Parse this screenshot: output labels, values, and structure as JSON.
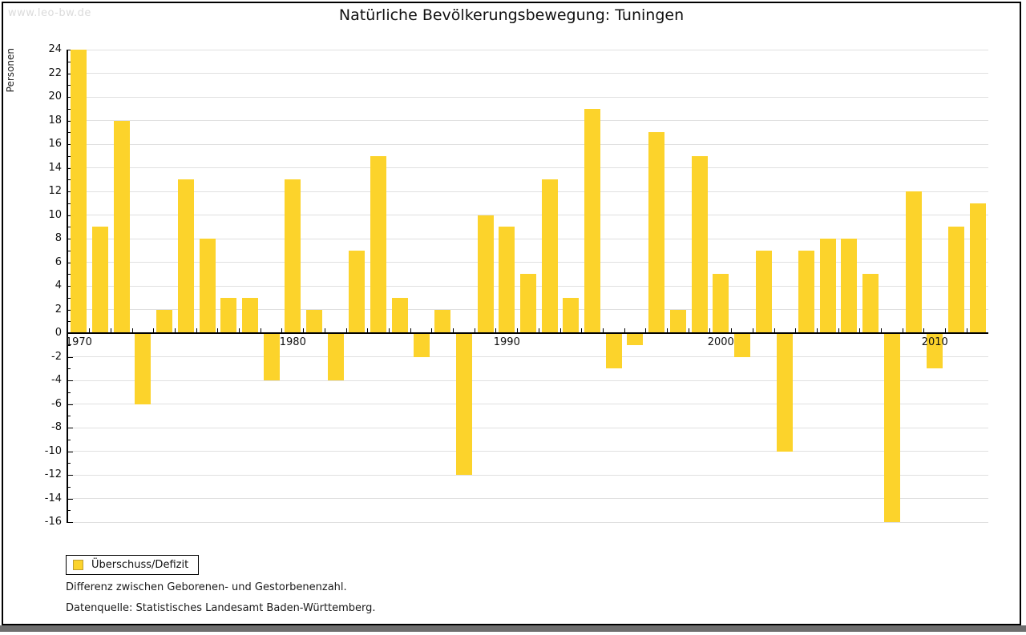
{
  "watermark": "www.leo-bw.de",
  "title": "Natürliche Bevölkerungsbewegung: Tuningen",
  "chart_data": {
    "type": "bar",
    "title": "Natürliche Bevölkerungsbewegung: Tuningen",
    "ylabel": "Personen",
    "ylim": [
      -16,
      24
    ],
    "ytick_step": 2,
    "grid": true,
    "legend_position": "bottom-left",
    "x_decade_labels": [
      1970,
      1980,
      1990,
      2000,
      2010
    ],
    "categories": [
      1970,
      1971,
      1972,
      1973,
      1974,
      1975,
      1976,
      1977,
      1978,
      1979,
      1980,
      1981,
      1982,
      1983,
      1984,
      1985,
      1986,
      1987,
      1988,
      1989,
      1990,
      1991,
      1992,
      1993,
      1994,
      1995,
      1996,
      1997,
      1998,
      1999,
      2000,
      2001,
      2002,
      2003,
      2004,
      2005,
      2006,
      2007,
      2008,
      2009,
      2010,
      2011,
      2012
    ],
    "series": [
      {
        "name": "Überschuss/Defizit",
        "values": [
          24,
          9,
          18,
          -6,
          2,
          13,
          8,
          3,
          3,
          -4,
          13,
          2,
          -4,
          7,
          15,
          3,
          -2,
          2,
          -12,
          10,
          9,
          5,
          13,
          3,
          19,
          -3,
          -1,
          17,
          2,
          15,
          5,
          -2,
          7,
          -10,
          7,
          8,
          8,
          5,
          -16,
          12,
          -3,
          9,
          11
        ]
      }
    ],
    "bar_color": "#fcd32b"
  },
  "colors": {
    "bar": "#fcd32b",
    "swatch_border": "#bf9f30",
    "gridline": "#e0e0e0"
  },
  "legend": {
    "label": "Überschuss/Defizit"
  },
  "notes": {
    "line1": "Differenz zwischen Geborenen- und Gestorbenenzahl.",
    "line2": "Datenquelle: Statistisches Landesamt Baden-Württemberg."
  }
}
